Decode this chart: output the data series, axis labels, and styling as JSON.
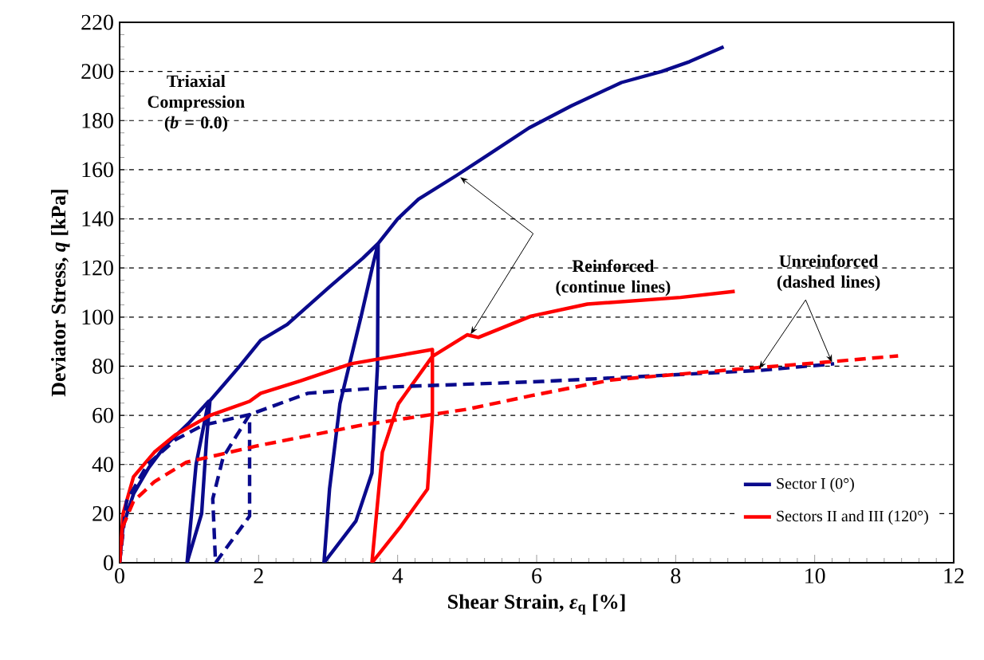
{
  "chart_data": {
    "type": "line",
    "xlabel": "Shear Strain, *ε*$_{q}$ [%]",
    "ylabel": "Deviator Stress, *q* [kPa]",
    "xlim": [
      0,
      12
    ],
    "ylim": [
      0,
      220
    ],
    "xticks": [
      0,
      2,
      4,
      6,
      8,
      10,
      12
    ],
    "yticks": [
      0,
      20,
      40,
      60,
      80,
      100,
      120,
      140,
      160,
      180,
      200,
      220
    ],
    "grid": "y",
    "legend": "bottom right",
    "line_style": "solid",
    "marker": "none",
    "annotations": [
      "Triaxial Compression (*b* = 0.0)",
      "Reinforced (continue lines)",
      {
        "text": "Unreinforced (dashed lines)",
        "x": 10.25,
        "y": 81.5
      }
    ],
    "series": [
      {
        "name": "Sector I (0°)",
        "color": "#0a0a8c",
        "x": [
          0,
          0.05,
          0.2,
          0.42,
          0.65,
          1.0,
          1.28,
          1.1,
          0.97,
          1.18,
          1.25,
          1.3,
          1.49,
          1.72,
          2.03,
          2.41,
          3.02,
          3.5,
          3.72,
          3.71,
          3.63,
          3.4,
          2.94,
          3.02,
          3.17,
          3.48,
          3.65,
          3.72,
          4.0,
          4.3,
          4.85,
          5.3,
          5.89,
          6.5,
          7.22,
          7.8,
          8.2,
          8.69
        ],
        "values": [
          0,
          15,
          28,
          38.7,
          47.4,
          57,
          65.7,
          40,
          0,
          20,
          50,
          66,
          72.2,
          79.8,
          90.6,
          97,
          112.3,
          124,
          130,
          80,
          36.5,
          17,
          0,
          30,
          64.7,
          101,
          122,
          130,
          140,
          148,
          157.7,
          166,
          177,
          186,
          195.5,
          200,
          204,
          210
        ]
      },
      {
        "name": "Sectors II and III (120°)",
        "color": "#ff0000",
        "x": [
          0,
          0.05,
          0.2,
          0.5,
          0.8,
          1.3,
          1.87,
          2.03,
          2.6,
          3.33,
          4.5,
          4.5,
          4.43,
          4.05,
          3.63,
          3.78,
          4.01,
          4.5,
          5.0,
          5.16,
          5.92,
          6.73,
          8.07,
          8.85
        ],
        "values": [
          0,
          20,
          35,
          45,
          52,
          60,
          65.7,
          69,
          74,
          81,
          86.8,
          60,
          30,
          15,
          0,
          45,
          64.7,
          84,
          92.8,
          91.7,
          100.4,
          105.3,
          108,
          110.5
        ]
      },
      {
        "color": "#0a0a8c",
        "line_style": "dashed",
        "x": [
          0,
          0.1,
          0.4,
          0.8,
          1.2,
          1.87,
          1.87,
          1.38,
          1.34,
          1.49,
          1.87,
          2.71,
          3.94,
          6.08,
          6.92,
          9.21,
          10.28
        ],
        "values": [
          0,
          25,
          40,
          50,
          56,
          60.3,
          19,
          0,
          26,
          43,
          60.3,
          69,
          71.6,
          73.8,
          75,
          78.3,
          81
        ]
      },
      {
        "color": "#ff0000",
        "line_style": "dashed",
        "x": [
          0,
          0.05,
          0.2,
          0.5,
          0.96,
          1.95,
          3.48,
          5.0,
          5.92,
          7.07,
          8.68,
          10.13,
          11.2
        ],
        "values": [
          0,
          15,
          25,
          33,
          40.9,
          47.4,
          56,
          62.5,
          68,
          74.4,
          78.3,
          81.6,
          84.2
        ]
      }
    ]
  }
}
